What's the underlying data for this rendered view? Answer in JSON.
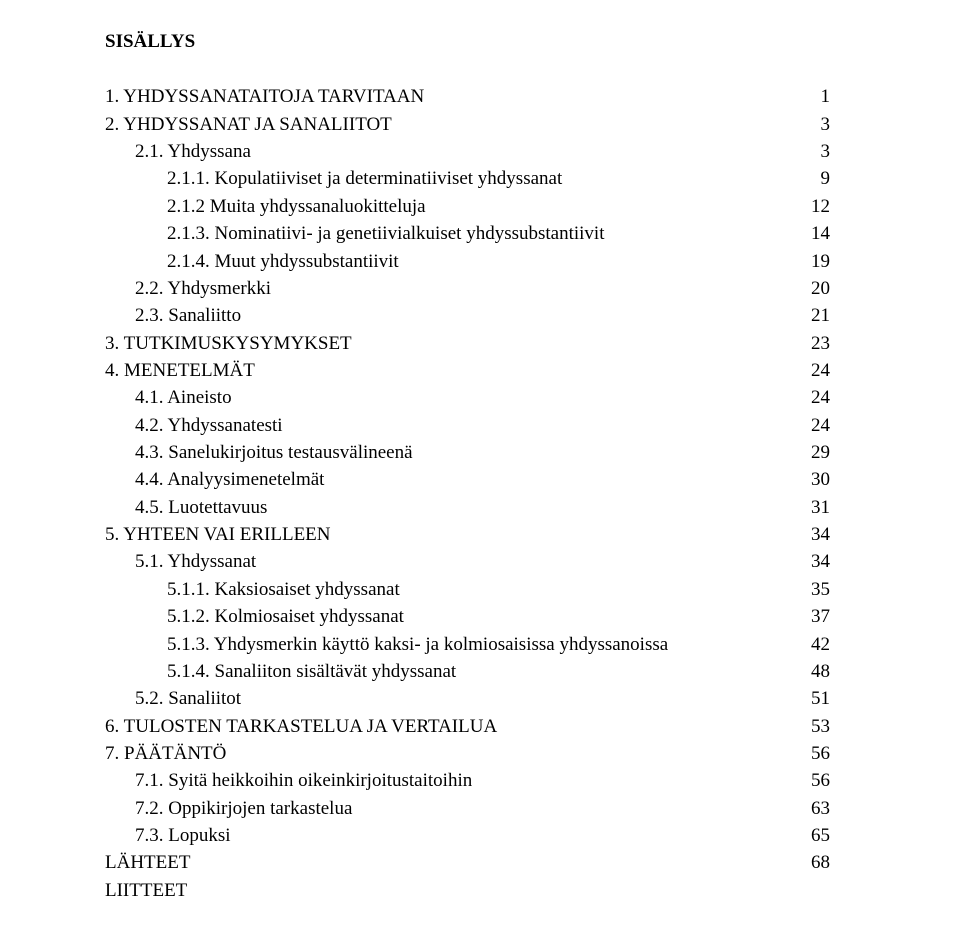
{
  "title": "SISÄLLYS",
  "entries": [
    {
      "indent": 0,
      "label": "1. YHDYSSANATAITOJA TARVITAAN",
      "page": "1"
    },
    {
      "indent": 0,
      "label": "2. YHDYSSANAT JA SANALIITOT",
      "page": "3"
    },
    {
      "indent": 1,
      "label": "2.1. Yhdyssana",
      "page": "3"
    },
    {
      "indent": 2,
      "label": "2.1.1. Kopulatiiviset ja determinatiiviset yhdyssanat",
      "page": "9"
    },
    {
      "indent": 2,
      "label": "2.1.2 Muita yhdyssanaluokitteluja",
      "page": "12"
    },
    {
      "indent": 2,
      "label": "2.1.3. Nominatiivi- ja genetiivialkuiset yhdyssubstantiivit",
      "page": "14"
    },
    {
      "indent": 2,
      "label": "2.1.4. Muut yhdyssubstantiivit",
      "page": "19"
    },
    {
      "indent": 1,
      "label": "2.2. Yhdysmerkki",
      "page": "20"
    },
    {
      "indent": 1,
      "label": "2.3. Sanaliitto",
      "page": "21"
    },
    {
      "indent": 0,
      "label": "3. TUTKIMUSKYSYMYKSET",
      "page": "23"
    },
    {
      "indent": 0,
      "label": "4. MENETELMÄT",
      "page": "24"
    },
    {
      "indent": 1,
      "label": "4.1. Aineisto",
      "page": "24"
    },
    {
      "indent": 1,
      "label": "4.2. Yhdyssanatesti",
      "page": "24"
    },
    {
      "indent": 1,
      "label": "4.3. Sanelukirjoitus testausvälineenä",
      "page": "29"
    },
    {
      "indent": 1,
      "label": "4.4. Analyysimenetelmät",
      "page": "30"
    },
    {
      "indent": 1,
      "label": "4.5. Luotettavuus",
      "page": "31"
    },
    {
      "indent": 0,
      "label": "5. YHTEEN VAI ERILLEEN",
      "page": "34"
    },
    {
      "indent": 1,
      "label": "5.1. Yhdyssanat",
      "page": "34"
    },
    {
      "indent": 2,
      "label": "5.1.1. Kaksiosaiset yhdyssanat",
      "page": "35"
    },
    {
      "indent": 2,
      "label": "5.1.2. Kolmiosaiset yhdyssanat",
      "page": "37"
    },
    {
      "indent": 2,
      "label": "5.1.3. Yhdysmerkin käyttö kaksi- ja kolmiosaisissa yhdyssanoissa",
      "page": "42"
    },
    {
      "indent": 2,
      "label": "5.1.4. Sanaliiton sisältävät yhdyssanat",
      "page": "48"
    },
    {
      "indent": 1,
      "label": "5.2. Sanaliitot",
      "page": "51"
    },
    {
      "indent": 0,
      "label": "6. TULOSTEN TARKASTELUA JA VERTAILUA",
      "page": "53"
    },
    {
      "indent": 0,
      "label": "7. PÄÄTÄNTÖ",
      "page": "56"
    },
    {
      "indent": 1,
      "label": "7.1. Syitä heikkoihin oikeinkirjoitustaitoihin",
      "page": "56"
    },
    {
      "indent": 1,
      "label": "7.2. Oppikirjojen tarkastelua",
      "page": "63"
    },
    {
      "indent": 1,
      "label": "7.3. Lopuksi",
      "page": "65"
    },
    {
      "indent": 0,
      "label": "LÄHTEET",
      "page": "68"
    },
    {
      "indent": 0,
      "label": "LIITTEET",
      "page": ""
    }
  ]
}
